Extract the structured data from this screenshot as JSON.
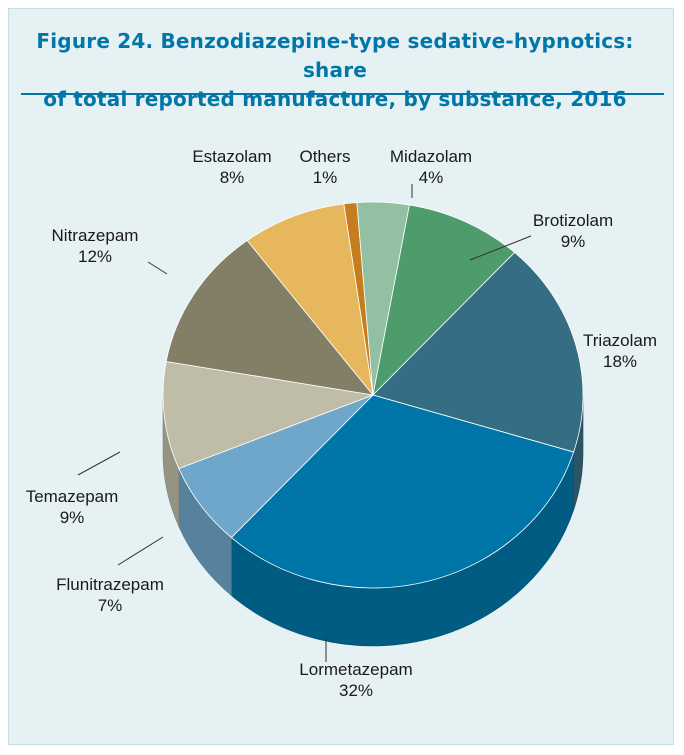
{
  "title_line1": "Figure 24.   Benzodiazepine-type sedative-hypnotics: share",
  "title_line2": "of total reported manufacture, by substance, 2016",
  "chart_data": {
    "type": "pie",
    "title": "Figure 24. Benzodiazepine-type sedative-hypnotics: share of total reported manufacture, by substance, 2016",
    "unit": "%",
    "slices": [
      {
        "label": "Others",
        "value": 1,
        "display": "1%",
        "color": "#c57d1e"
      },
      {
        "label": "Midazolam",
        "value": 4,
        "display": "4%",
        "color": "#93bfa2"
      },
      {
        "label": "Brotizolam",
        "value": 9,
        "display": "9%",
        "color": "#4e9b6c"
      },
      {
        "label": "Triazolam",
        "value": 18,
        "display": "18%",
        "color": "#346d84"
      },
      {
        "label": "Lormetazepam",
        "value": 32,
        "display": "32%",
        "color": "#0076a8"
      },
      {
        "label": "Flunitrazepam",
        "value": 7,
        "display": "7%",
        "color": "#6fa7cb"
      },
      {
        "label": "Temazepam",
        "value": 9,
        "display": "9%",
        "color": "#bfbda7"
      },
      {
        "label": "Nitrazepam",
        "value": 12,
        "display": "12%",
        "color": "#837f66"
      },
      {
        "label": "Estazolam",
        "value": 8,
        "display": "8%",
        "color": "#e6b75c"
      }
    ]
  }
}
